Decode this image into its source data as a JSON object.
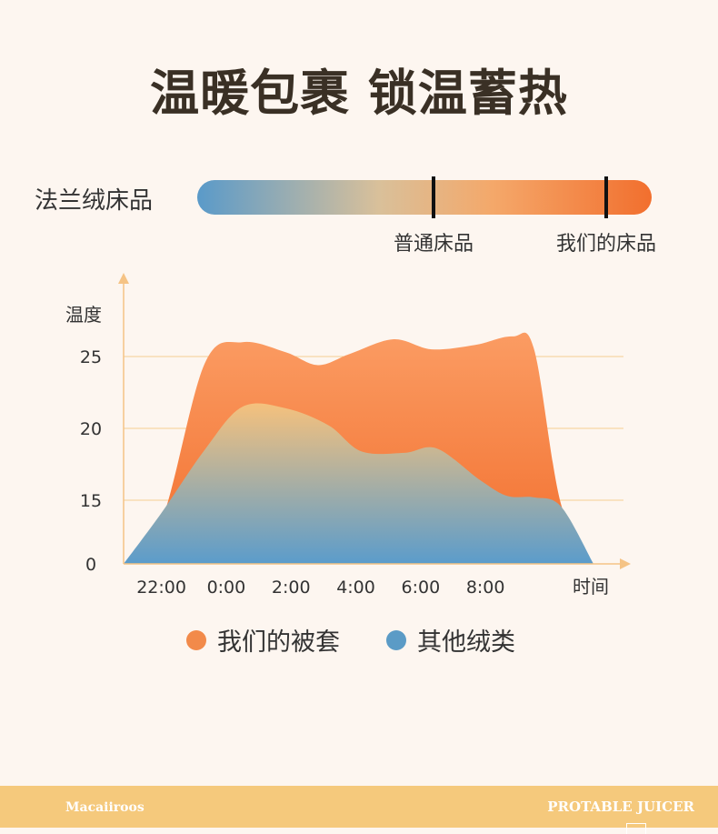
{
  "title": "温暖包裹 锁温蓄热",
  "scale": {
    "label": "法兰绒床品",
    "markers": [
      {
        "label": "普通床品",
        "position": 0.52
      },
      {
        "label": "我们的床品",
        "position": 0.9
      }
    ]
  },
  "legend": [
    {
      "label": "我们的被套",
      "color": "#f28a4a"
    },
    {
      "label": "其他绒类",
      "color": "#5b9bc6"
    }
  ],
  "footer": {
    "brand": "Macaiiroos",
    "product": "PROTABLE JUICER"
  },
  "chart_data": {
    "type": "area",
    "ylabel": "温度",
    "xlabel": "时间",
    "yticks": [
      "25",
      "20",
      "15",
      "0"
    ],
    "xticks": [
      "22:00",
      "0:00",
      "2:00",
      "4:00",
      "6:00",
      "8:00"
    ],
    "grid": true,
    "series": [
      {
        "name": "我们的被套",
        "points": [
          [
            0,
            0
          ],
          [
            0.7,
            10
          ],
          [
            1.5,
            24.5
          ],
          [
            2.2,
            26
          ],
          [
            3,
            25.3
          ],
          [
            3.6,
            24.4
          ],
          [
            4.2,
            25.2
          ],
          [
            5,
            26.2
          ],
          [
            5.7,
            25.5
          ],
          [
            6.5,
            25.8
          ],
          [
            7.2,
            26.4
          ],
          [
            7.6,
            25.5
          ],
          [
            8.1,
            14
          ],
          [
            8.7,
            0
          ]
        ]
      },
      {
        "name": "其他绒类",
        "points": [
          [
            0,
            0
          ],
          [
            0.7,
            12
          ],
          [
            1.5,
            18.5
          ],
          [
            2.2,
            21.5
          ],
          [
            3,
            21.4
          ],
          [
            3.8,
            20.2
          ],
          [
            4.4,
            18.4
          ],
          [
            5.2,
            18.3
          ],
          [
            5.8,
            18.6
          ],
          [
            6.6,
            16.4
          ],
          [
            7.1,
            15.3
          ],
          [
            7.6,
            15.2
          ],
          [
            8.1,
            13.5
          ],
          [
            8.7,
            0
          ]
        ]
      }
    ]
  }
}
